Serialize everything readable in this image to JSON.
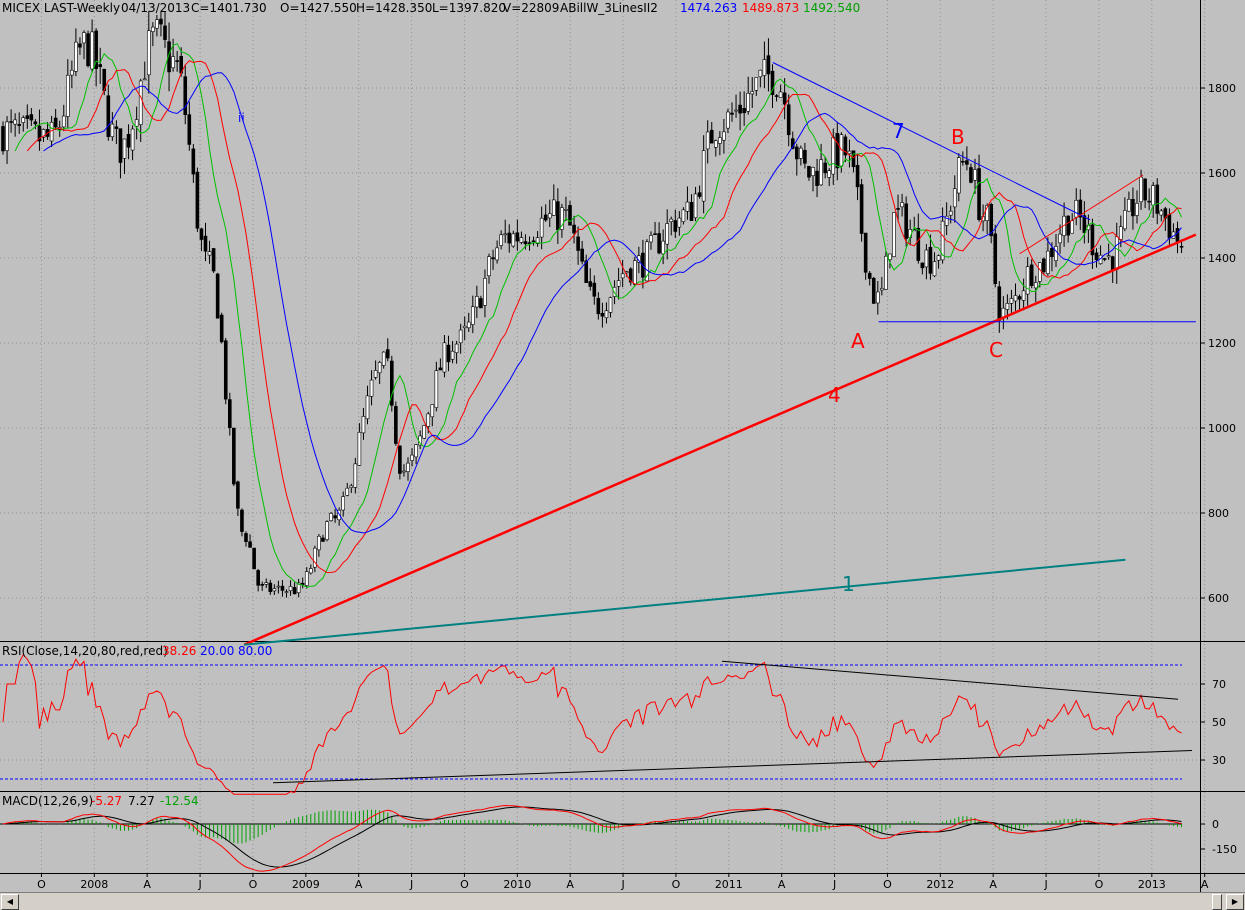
{
  "header": {
    "symbol": "MICEX LAST-Weekly",
    "date": "04/13/2013",
    "close": "C=1401.730",
    "open": "O=1427.550",
    "high": "H=1428.350",
    "low": "L=1397.820",
    "volume": "V=22809",
    "indicator": "ABillW_3LinesII2",
    "blue_value": "1474.263",
    "red_value": "1489.873",
    "green_value": "1492.540"
  },
  "price_panel": {
    "y_ticks": [
      "1800",
      "1600",
      "1400",
      "1200",
      "1000",
      "800",
      "600"
    ],
    "annotations": {
      "a": "A",
      "b": "B",
      "c": "C",
      "line4": "4",
      "line7": "7",
      "line1": "1",
      "ii": "ii"
    }
  },
  "rsi_panel": {
    "label": "RSI(Close,14,20,80,red,red)",
    "value": "38.26",
    "lower": "20.00",
    "upper": "80.00",
    "y_ticks": [
      "70",
      "50",
      "30"
    ]
  },
  "macd_panel": {
    "label": "MACD(12,26,9)",
    "value1": "-5.27",
    "value2": "7.27",
    "value3": "-12.54",
    "y_ticks": [
      "0",
      "-150"
    ]
  },
  "x_axis": {
    "labels": [
      {
        "t": "O"
      },
      {
        "t": "2008"
      },
      {
        "t": "A"
      },
      {
        "t": "J"
      },
      {
        "t": "O"
      },
      {
        "t": "2009"
      },
      {
        "t": "A"
      },
      {
        "t": "J"
      },
      {
        "t": "O"
      },
      {
        "t": "2010"
      },
      {
        "t": "A"
      },
      {
        "t": "J"
      },
      {
        "t": "O"
      },
      {
        "t": "2011"
      },
      {
        "t": "A"
      },
      {
        "t": "J"
      },
      {
        "t": "O"
      },
      {
        "t": "2012"
      },
      {
        "t": "A"
      },
      {
        "t": "J"
      },
      {
        "t": "O"
      },
      {
        "t": "2013"
      },
      {
        "t": "A"
      }
    ]
  },
  "colors": {
    "red": "#ff0000",
    "blue": "#0000ff",
    "green": "#00c000",
    "teal": "#008080",
    "black": "#000000",
    "grid": "#909090"
  },
  "chart_data": [
    {
      "type": "candlestick",
      "title": "MICEX LAST-Weekly",
      "ylim": [
        520,
        1950
      ],
      "anchors": [
        {
          "date": "2007-08",
          "price": 1700
        },
        {
          "date": "2007-11",
          "price": 1680
        },
        {
          "date": "2008-01",
          "price": 1900
        },
        {
          "date": "2008-03",
          "price": 1660
        },
        {
          "date": "2008-05",
          "price": 1920
        },
        {
          "date": "2008-06",
          "price": 1860
        },
        {
          "date": "2008-08",
          "price": 1380
        },
        {
          "date": "2008-10",
          "price": 750
        },
        {
          "date": "2008-11",
          "price": 620
        },
        {
          "date": "2009-01",
          "price": 620
        },
        {
          "date": "2009-03",
          "price": 780
        },
        {
          "date": "2009-06",
          "price": 1150
        },
        {
          "date": "2009-07",
          "price": 900
        },
        {
          "date": "2009-10",
          "price": 1200
        },
        {
          "date": "2010-01",
          "price": 1450
        },
        {
          "date": "2010-04",
          "price": 1500
        },
        {
          "date": "2010-06",
          "price": 1290
        },
        {
          "date": "2010-08",
          "price": 1380
        },
        {
          "date": "2010-11",
          "price": 1500
        },
        {
          "date": "2011-01",
          "price": 1720
        },
        {
          "date": "2011-04",
          "price": 1830
        },
        {
          "date": "2011-06",
          "price": 1600
        },
        {
          "date": "2011-08",
          "price": 1650
        },
        {
          "date": "2011-10",
          "price": 1300
        },
        {
          "date": "2011-11",
          "price": 1500
        },
        {
          "date": "2012-01",
          "price": 1400
        },
        {
          "date": "2012-03",
          "price": 1630
        },
        {
          "date": "2012-04",
          "price": 1500
        },
        {
          "date": "2012-05",
          "price": 1270
        },
        {
          "date": "2012-07",
          "price": 1380
        },
        {
          "date": "2012-09",
          "price": 1500
        },
        {
          "date": "2012-11",
          "price": 1400
        },
        {
          "date": "2013-01",
          "price": 1550
        },
        {
          "date": "2013-04",
          "price": 1402
        }
      ],
      "trendlines": [
        {
          "name": "4",
          "from": {
            "date": "2008-10",
            "price": 490
          },
          "to": {
            "date": "2013-04",
            "price": 1455
          }
        },
        {
          "name": "7",
          "from": {
            "date": "2011-04",
            "price": 1860
          },
          "to": {
            "date": "2012-10",
            "price": 1490
          }
        },
        {
          "name": "1",
          "from": {
            "date": "2008-10",
            "price": 490
          },
          "to": {
            "date": "2012-12",
            "price": 690
          }
        },
        {
          "name": "A-C support",
          "from": {
            "date": "2011-10",
            "price": 1250
          },
          "to": {
            "date": "2013-04",
            "price": 1250
          }
        },
        {
          "name": "channel",
          "from": {
            "date": "2012-06",
            "price": 1410
          },
          "to": {
            "date": "2013-01",
            "price": 1595
          }
        }
      ],
      "series": [
        {
          "name": "1474.263"
        },
        {
          "name": "1489.873"
        },
        {
          "name": "1492.540"
        }
      ]
    },
    {
      "type": "line",
      "title": "RSI(Close,14,20,80,red,red)",
      "ylim": [
        10,
        90
      ],
      "levels": [
        20,
        80
      ],
      "last_value": 38.26
    },
    {
      "type": "line",
      "title": "MACD(12,26,9)",
      "values": {
        "macd": -5.27,
        "signal": 7.27,
        "histogram": -12.54
      }
    }
  ]
}
